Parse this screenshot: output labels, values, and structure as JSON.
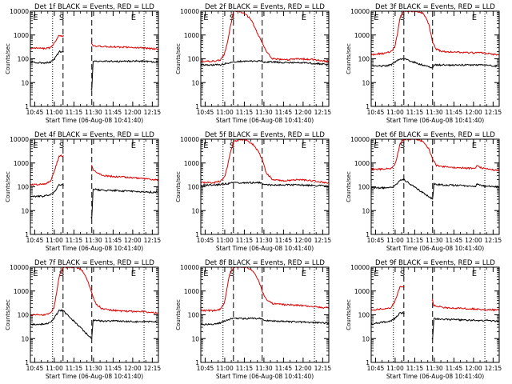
{
  "figure": {
    "xtick_labels": [
      "10:45",
      "11:00",
      "11:15",
      "11:30",
      "11:45",
      "12:00",
      "12:15"
    ],
    "ytick_labels": [
      "1",
      "10",
      "100",
      "1000",
      "10000"
    ],
    "ylabel": "Counts/sec",
    "xlabel": "Start Time (06-Aug-08 10:41:40)",
    "colors": {
      "events": "#000000",
      "lld": "#dd0000"
    }
  },
  "chart_data": [
    {
      "type": "line",
      "title": "Det 1f BLACK = Events, RED = LLD",
      "xlabel": "Start Time (06-Aug-08 10:41:40)",
      "ylabel": "Counts/sec",
      "x_unit": "minutes after 10:41:40",
      "xlim": [
        0,
        98
      ],
      "ylim": [
        1,
        10000
      ],
      "yscale": "log",
      "markers": [
        {
          "label": "E",
          "x": 2
        },
        {
          "label": "S",
          "x": 22
        },
        {
          "label": "E",
          "x": 77
        }
      ],
      "vlines_dotted": [
        17,
        87
      ],
      "vlines_dashed": [
        25,
        47
      ],
      "data_gap": [
        25,
        47
      ],
      "series": [
        {
          "name": "Events",
          "color": "#000000",
          "x": [
            0,
            5,
            10,
            15,
            18,
            22,
            25,
            47,
            48,
            55,
            65,
            75,
            85,
            95
          ],
          "y": [
            70,
            70,
            68,
            70,
            90,
            200,
            200,
            5,
            80,
            80,
            78,
            80,
            80,
            75
          ]
        },
        {
          "name": "LLD",
          "color": "#dd0000",
          "x": [
            0,
            5,
            10,
            15,
            18,
            22,
            25,
            47,
            48,
            55,
            65,
            75,
            85,
            95
          ],
          "y": [
            280,
            280,
            270,
            290,
            450,
            950,
            950,
            400,
            350,
            330,
            320,
            300,
            290,
            260
          ]
        }
      ]
    },
    {
      "type": "line",
      "title": "Det 2f BLACK = Events, RED = LLD",
      "xlabel": "Start Time (06-Aug-08 10:41:40)",
      "ylabel": "Counts/sec",
      "x_unit": "minutes after 10:41:40",
      "xlim": [
        0,
        98
      ],
      "ylim": [
        1,
        10000
      ],
      "yscale": "log",
      "markers": [
        {
          "label": "E",
          "x": 2
        },
        {
          "label": "S",
          "x": 22
        },
        {
          "label": "E",
          "x": 77
        }
      ],
      "vlines_dotted": [
        17,
        87
      ],
      "vlines_dashed": [
        25,
        47
      ],
      "series": [
        {
          "name": "Events",
          "color": "#000000",
          "x": [
            0,
            10,
            15,
            18,
            20,
            25,
            35,
            44,
            47,
            48,
            55,
            65,
            75,
            85,
            95
          ],
          "y": [
            55,
            55,
            56,
            60,
            65,
            75,
            80,
            80,
            80,
            70,
            75,
            68,
            70,
            65,
            60
          ]
        },
        {
          "name": "LLD",
          "color": "#dd0000",
          "x": [
            0,
            10,
            15,
            18,
            20,
            22,
            25,
            30,
            33,
            38,
            44,
            47,
            50,
            55,
            65,
            75,
            85,
            95
          ],
          "y": [
            80,
            80,
            90,
            150,
            400,
            1500,
            10000,
            10000,
            8000,
            5000,
            1000,
            500,
            200,
            100,
            90,
            100,
            95,
            80
          ]
        }
      ]
    },
    {
      "type": "line",
      "title": "Det 3f BLACK = Events, RED = LLD",
      "xlabel": "Start Time (06-Aug-08 10:41:40)",
      "ylabel": "Counts/sec",
      "x_unit": "minutes after 10:41:40",
      "xlim": [
        0,
        98
      ],
      "ylim": [
        1,
        10000
      ],
      "yscale": "log",
      "markers": [
        {
          "label": "E",
          "x": 2
        },
        {
          "label": "S",
          "x": 22
        },
        {
          "label": "E",
          "x": 77
        }
      ],
      "vlines_dotted": [
        17,
        87
      ],
      "vlines_dashed": [
        25,
        47
      ],
      "series": [
        {
          "name": "Events",
          "color": "#000000",
          "x": [
            0,
            10,
            15,
            18,
            22,
            25,
            47,
            48,
            55,
            65,
            75,
            85,
            95
          ],
          "y": [
            50,
            50,
            55,
            70,
            100,
            100,
            40,
            55,
            55,
            55,
            55,
            55,
            50
          ]
        },
        {
          "name": "LLD",
          "color": "#dd0000",
          "x": [
            0,
            10,
            15,
            18,
            20,
            22,
            25,
            30,
            35,
            40,
            44,
            47,
            50,
            55,
            65,
            75,
            85,
            95
          ],
          "y": [
            150,
            170,
            200,
            300,
            1000,
            5000,
            10000,
            10000,
            10000,
            8000,
            3000,
            500,
            250,
            200,
            190,
            180,
            180,
            150
          ]
        }
      ]
    },
    {
      "type": "line",
      "title": "Det 4f BLACK = Events, RED = LLD",
      "xlabel": "Start Time (06-Aug-08 10:41:40)",
      "ylabel": "Counts/sec",
      "x_unit": "minutes after 10:41:40",
      "xlim": [
        0,
        98
      ],
      "ylim": [
        1,
        10000
      ],
      "yscale": "log",
      "markers": [
        {
          "label": "E",
          "x": 2
        },
        {
          "label": "S",
          "x": 22
        },
        {
          "label": "E",
          "x": 77
        }
      ],
      "vlines_dotted": [
        17,
        87
      ],
      "vlines_dashed": [
        25,
        47
      ],
      "data_gap": [
        25,
        47
      ],
      "series": [
        {
          "name": "Events",
          "color": "#000000",
          "x": [
            0,
            10,
            15,
            18,
            22,
            25,
            47,
            48,
            55,
            65,
            75,
            85,
            95
          ],
          "y": [
            40,
            40,
            45,
            60,
            120,
            120,
            5,
            80,
            70,
            70,
            65,
            60,
            60
          ]
        },
        {
          "name": "LLD",
          "color": "#dd0000",
          "x": [
            0,
            10,
            15,
            18,
            22,
            25,
            47,
            48,
            55,
            65,
            75,
            85,
            95
          ],
          "y": [
            120,
            130,
            160,
            400,
            2000,
            2000,
            800,
            500,
            300,
            270,
            250,
            220,
            200
          ]
        }
      ]
    },
    {
      "type": "line",
      "title": "Det 5f BLACK = Events, RED = LLD",
      "xlabel": "Start Time (06-Aug-08 10:41:40)",
      "ylabel": "Counts/sec",
      "x_unit": "minutes after 10:41:40",
      "xlim": [
        0,
        98
      ],
      "ylim": [
        1,
        10000
      ],
      "yscale": "log",
      "markers": [
        {
          "label": "E",
          "x": 2
        },
        {
          "label": "S",
          "x": 22
        },
        {
          "label": "E",
          "x": 77
        }
      ],
      "vlines_dotted": [
        17,
        87
      ],
      "vlines_dashed": [
        25,
        47
      ],
      "series": [
        {
          "name": "Events",
          "color": "#000000",
          "x": [
            0,
            10,
            15,
            18,
            22,
            25,
            35,
            47,
            48,
            55,
            65,
            75,
            85,
            95
          ],
          "y": [
            120,
            120,
            125,
            130,
            140,
            150,
            150,
            150,
            120,
            120,
            120,
            120,
            115,
            110
          ]
        },
        {
          "name": "LLD",
          "color": "#dd0000",
          "x": [
            0,
            10,
            15,
            18,
            20,
            22,
            25,
            30,
            35,
            40,
            44,
            47,
            50,
            55,
            65,
            75,
            85,
            95
          ],
          "y": [
            150,
            150,
            170,
            250,
            600,
            2000,
            8000,
            10000,
            9000,
            6000,
            3000,
            1500,
            400,
            200,
            180,
            200,
            180,
            150
          ]
        }
      ]
    },
    {
      "type": "line",
      "title": "Det 6f BLACK = Events, RED = LLD",
      "xlabel": "Start Time (06-Aug-08 10:41:40)",
      "ylabel": "Counts/sec",
      "x_unit": "minutes after 10:41:40",
      "xlim": [
        0,
        98
      ],
      "ylim": [
        1,
        10000
      ],
      "yscale": "log",
      "markers": [
        {
          "label": "E",
          "x": 2
        },
        {
          "label": "S",
          "x": 22
        },
        {
          "label": "E",
          "x": 77
        }
      ],
      "vlines_dotted": [
        17,
        87
      ],
      "vlines_dashed": [
        25,
        47
      ],
      "series": [
        {
          "name": "Events",
          "color": "#000000",
          "x": [
            0,
            10,
            15,
            18,
            22,
            25,
            47,
            48,
            55,
            65,
            75,
            80,
            81,
            85,
            95
          ],
          "y": [
            90,
            90,
            95,
            110,
            180,
            200,
            30,
            130,
            120,
            115,
            110,
            105,
            130,
            110,
            100
          ]
        },
        {
          "name": "LLD",
          "color": "#dd0000",
          "x": [
            0,
            10,
            15,
            18,
            20,
            22,
            25,
            30,
            35,
            40,
            44,
            47,
            50,
            55,
            65,
            75,
            80,
            81,
            85,
            95
          ],
          "y": [
            550,
            550,
            600,
            800,
            2000,
            6000,
            10000,
            10000,
            10000,
            8000,
            4000,
            1500,
            800,
            700,
            650,
            600,
            580,
            800,
            600,
            500
          ]
        }
      ]
    },
    {
      "type": "line",
      "title": "Det 7f BLACK = Events, RED = LLD",
      "xlabel": "Start Time (06-Aug-08 10:41:40)",
      "ylabel": "Counts/sec",
      "x_unit": "minutes after 10:41:40",
      "xlim": [
        0,
        98
      ],
      "ylim": [
        1,
        10000
      ],
      "yscale": "log",
      "markers": [
        {
          "label": "E",
          "x": 2
        },
        {
          "label": "S",
          "x": 22
        },
        {
          "label": "E",
          "x": 77
        }
      ],
      "vlines_dotted": [
        17,
        87
      ],
      "vlines_dashed": [
        25,
        47
      ],
      "series": [
        {
          "name": "Events",
          "color": "#000000",
          "x": [
            0,
            10,
            15,
            18,
            22,
            25,
            47,
            48,
            55,
            65,
            75,
            85,
            95
          ],
          "y": [
            40,
            40,
            45,
            70,
            150,
            150,
            10,
            60,
            55,
            55,
            52,
            52,
            50
          ]
        },
        {
          "name": "LLD",
          "color": "#dd0000",
          "x": [
            0,
            10,
            15,
            18,
            20,
            22,
            25,
            30,
            35,
            40,
            44,
            47,
            50,
            55,
            65,
            75,
            85,
            95
          ],
          "y": [
            100,
            100,
            110,
            200,
            800,
            4000,
            10000,
            10000,
            10000,
            7000,
            2500,
            800,
            300,
            180,
            150,
            140,
            140,
            120
          ]
        }
      ]
    },
    {
      "type": "line",
      "title": "Det 8f BLACK = Events, RED = LLD",
      "xlabel": "Start Time (06-Aug-08 10:41:40)",
      "ylabel": "Counts/sec",
      "x_unit": "minutes after 10:41:40",
      "xlim": [
        0,
        98
      ],
      "ylim": [
        1,
        10000
      ],
      "yscale": "log",
      "markers": [
        {
          "label": "E",
          "x": 2
        },
        {
          "label": "S",
          "x": 22
        },
        {
          "label": "E",
          "x": 77
        }
      ],
      "vlines_dotted": [
        17,
        87
      ],
      "vlines_dashed": [
        25,
        47
      ],
      "series": [
        {
          "name": "Events",
          "color": "#000000",
          "x": [
            0,
            10,
            15,
            18,
            22,
            25,
            35,
            47,
            48,
            55,
            65,
            75,
            85,
            95
          ],
          "y": [
            40,
            40,
            45,
            55,
            65,
            70,
            70,
            70,
            60,
            55,
            52,
            50,
            48,
            45
          ]
        },
        {
          "name": "LLD",
          "color": "#dd0000",
          "x": [
            0,
            10,
            15,
            18,
            20,
            22,
            25,
            30,
            35,
            40,
            44,
            47,
            50,
            55,
            65,
            75,
            85,
            95
          ],
          "y": [
            150,
            150,
            170,
            300,
            1200,
            5000,
            10000,
            10000,
            10000,
            7000,
            3000,
            1000,
            450,
            300,
            270,
            250,
            230,
            200
          ]
        }
      ]
    },
    {
      "type": "line",
      "title": "Det 9f BLACK = Events, RED = LLD",
      "xlabel": "Start Time (06-Aug-08 10:41:40)",
      "ylabel": "Counts/sec",
      "x_unit": "minutes after 10:41:40",
      "xlim": [
        0,
        98
      ],
      "ylim": [
        1,
        10000
      ],
      "yscale": "log",
      "markers": [
        {
          "label": "E",
          "x": 2
        },
        {
          "label": "S",
          "x": 22
        },
        {
          "label": "E",
          "x": 77
        }
      ],
      "vlines_dotted": [
        17,
        87
      ],
      "vlines_dashed": [
        25,
        47
      ],
      "data_gap": [
        25,
        47
      ],
      "series": [
        {
          "name": "Events",
          "color": "#000000",
          "x": [
            0,
            5,
            10,
            15,
            18,
            22,
            25,
            47,
            48,
            55,
            65,
            75,
            85,
            95
          ],
          "y": [
            40,
            45,
            50,
            55,
            70,
            120,
            120,
            10,
            70,
            65,
            62,
            60,
            58,
            55
          ]
        },
        {
          "name": "LLD",
          "color": "#dd0000",
          "x": [
            0,
            5,
            10,
            15,
            18,
            22,
            25,
            47,
            48,
            55,
            65,
            75,
            85,
            95
          ],
          "y": [
            150,
            170,
            180,
            200,
            350,
            1500,
            1500,
            400,
            250,
            200,
            190,
            180,
            170,
            160
          ]
        }
      ]
    }
  ]
}
